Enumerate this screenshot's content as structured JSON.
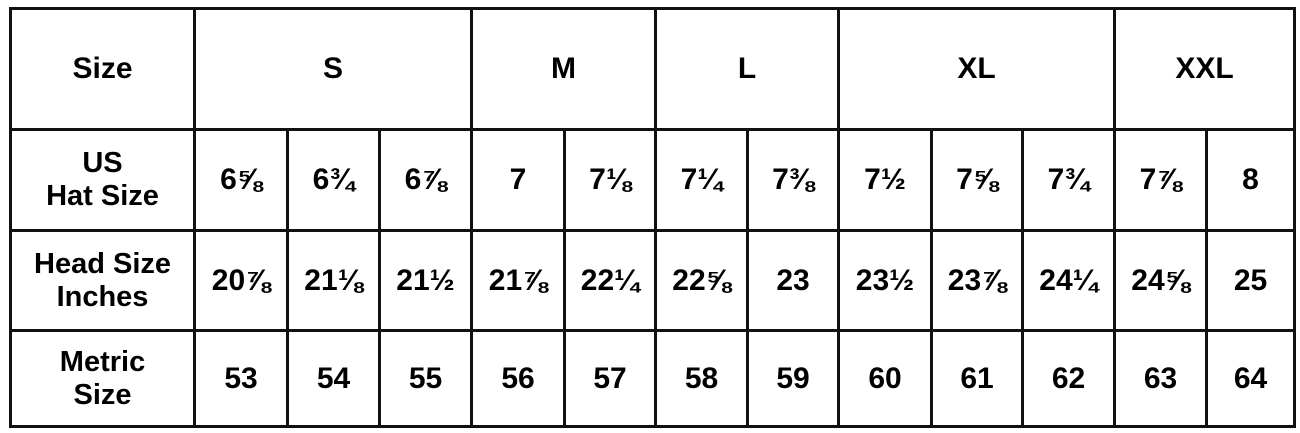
{
  "table": {
    "size_label": "Size",
    "size_groups": [
      {
        "label": "S",
        "span": 3
      },
      {
        "label": "M",
        "span": 2
      },
      {
        "label": "L",
        "span": 2
      },
      {
        "label": "XL",
        "span": 3
      },
      {
        "label": "XXL",
        "span": 2
      }
    ],
    "rows": [
      {
        "label_lines": [
          "US",
          "Hat Size"
        ],
        "values": [
          "6⅝",
          "6¾",
          "6⅞",
          "7",
          "7⅛",
          "7¼",
          "7⅜",
          "7½",
          "7⅝",
          "7¾",
          "7⅞",
          "8"
        ]
      },
      {
        "label_lines": [
          "Head Size",
          "Inches"
        ],
        "values": [
          "20⅞",
          "21⅛",
          "21½",
          "21⅞",
          "22¼",
          "22⅝",
          "23",
          "23½",
          "23⅞",
          "24¼",
          "24⅝",
          "25"
        ]
      },
      {
        "label_lines": [
          "Metric",
          "Size"
        ],
        "values": [
          "53",
          "54",
          "55",
          "56",
          "57",
          "58",
          "59",
          "60",
          "61",
          "62",
          "63",
          "64"
        ]
      }
    ]
  }
}
